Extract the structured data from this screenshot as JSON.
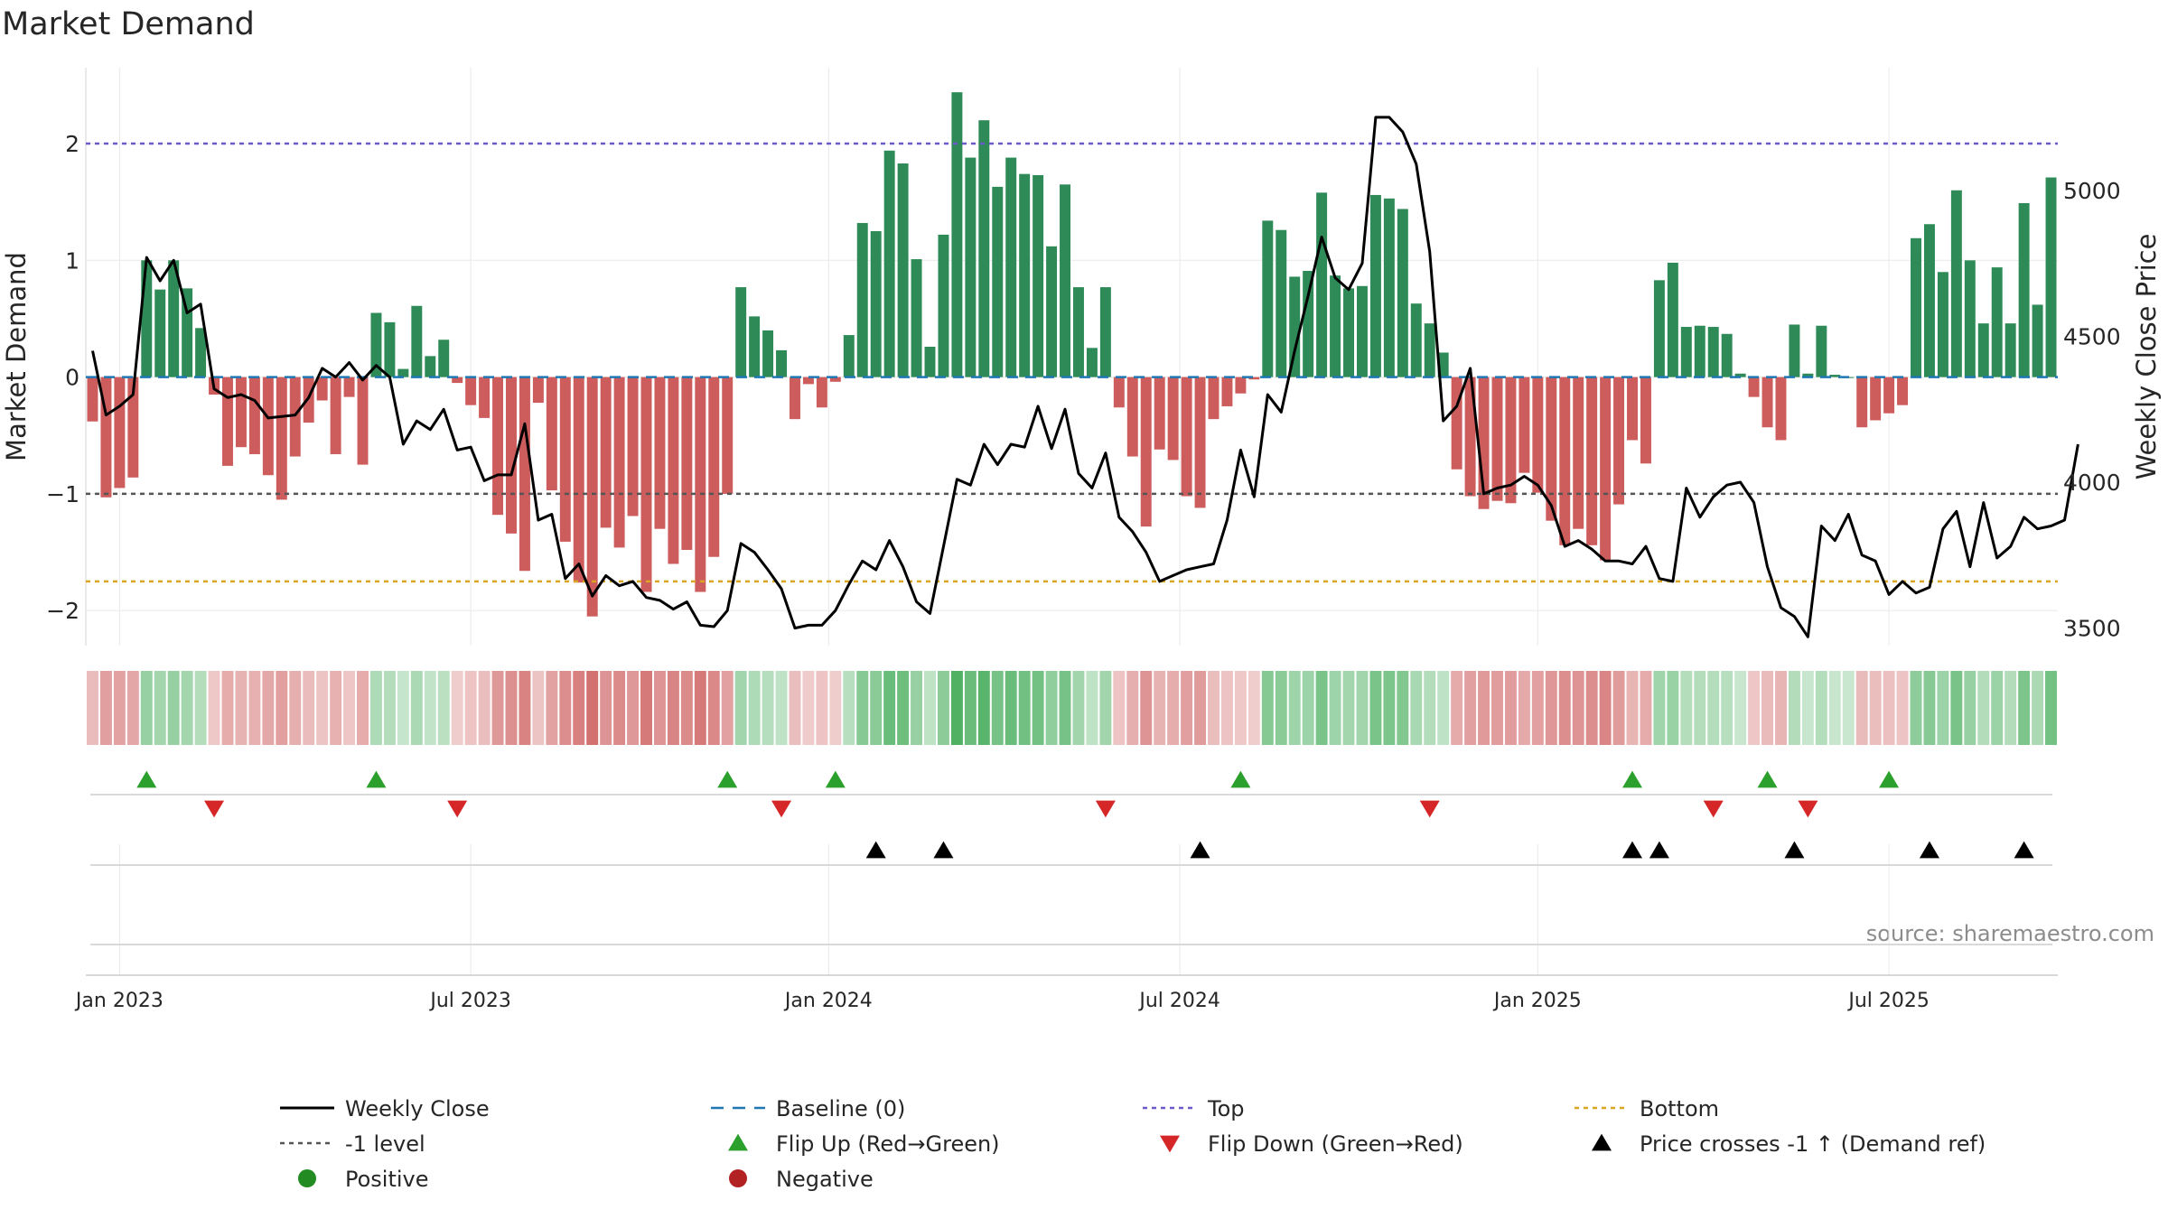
{
  "chart_data": {
    "type": "bar",
    "title": "Market Demand",
    "xlabel": "",
    "ylabel": "Market Demand",
    "y2label": "Weekly Close Price",
    "ylim": [
      -2.3,
      2.65
    ],
    "y2lim": [
      3440,
      5420
    ],
    "yticks": [
      {
        "value": 2,
        "label": "2"
      },
      {
        "value": 1,
        "label": "1"
      },
      {
        "value": 0,
        "label": "0"
      },
      {
        "value": -1,
        "label": "−1"
      },
      {
        "value": -2,
        "label": "−2"
      }
    ],
    "y2ticks": [
      {
        "value": 5000,
        "label": "5000"
      },
      {
        "value": 4500,
        "label": "4500"
      },
      {
        "value": 4000,
        "label": "4000"
      },
      {
        "value": 3500,
        "label": "3500"
      }
    ],
    "xticks": [
      {
        "week": 2,
        "label": "Jan 2023"
      },
      {
        "week": 28,
        "label": "Jul 2023"
      },
      {
        "week": 54.5,
        "label": "Jan 2024"
      },
      {
        "week": 80.5,
        "label": "Jul 2024"
      },
      {
        "week": 107,
        "label": "Jan 2025"
      },
      {
        "week": 133,
        "label": "Jul 2025"
      }
    ],
    "reference_lines": {
      "top": 2,
      "bottom": -1.75,
      "minus_one": -1,
      "baseline": 0
    },
    "series": [
      {
        "name": "Market Demand",
        "values": [
          -0.38,
          -1.03,
          -0.95,
          -0.86,
          1.0,
          0.75,
          1.0,
          0.76,
          0.42,
          -0.15,
          -0.76,
          -0.6,
          -0.66,
          -0.84,
          -1.05,
          -0.68,
          -0.39,
          -0.2,
          -0.66,
          -0.17,
          -0.75,
          0.55,
          0.47,
          0.07,
          0.61,
          0.18,
          0.32,
          -0.05,
          -0.24,
          -0.35,
          -1.18,
          -1.34,
          -1.66,
          -0.22,
          -0.97,
          -1.41,
          -1.76,
          -2.05,
          -1.29,
          -1.46,
          -1.19,
          -1.84,
          -1.3,
          -1.6,
          -1.48,
          -1.84,
          -1.54,
          -1.0,
          0.77,
          0.52,
          0.4,
          0.23,
          -0.36,
          -0.06,
          -0.26,
          -0.04,
          0.36,
          1.32,
          1.25,
          1.94,
          1.83,
          1.01,
          0.26,
          1.22,
          2.44,
          1.88,
          2.2,
          1.63,
          1.88,
          1.74,
          1.73,
          1.12,
          1.65,
          0.77,
          0.25,
          0.77,
          -0.26,
          -0.68,
          -1.28,
          -0.62,
          -0.71,
          -1.02,
          -1.12,
          -0.36,
          -0.25,
          -0.14,
          -0.02,
          1.34,
          1.26,
          0.86,
          0.91,
          1.58,
          0.87,
          0.76,
          0.78,
          1.56,
          1.53,
          1.44,
          0.63,
          0.46,
          0.21,
          -0.79,
          -1.02,
          -1.13,
          -1.06,
          -1.08,
          -0.82,
          -0.99,
          -1.23,
          -1.44,
          -1.3,
          -1.44,
          -1.57,
          -1.09,
          -0.54,
          -0.74,
          0.83,
          0.98,
          0.43,
          0.44,
          0.43,
          0.37,
          0.03,
          -0.17,
          -0.43,
          -0.54,
          0.45,
          0.03,
          0.44,
          0.02,
          0.0,
          -0.43,
          -0.37,
          -0.31,
          -0.24,
          1.19,
          1.31,
          0.9,
          1.6,
          1.0,
          0.46,
          0.94,
          0.46,
          1.49,
          0.62,
          1.71
        ]
      },
      {
        "name": "Weekly Close",
        "values": [
          4450,
          4230,
          4260,
          4300,
          4770,
          4690,
          4760,
          4580,
          4610,
          4320,
          4290,
          4300,
          4280,
          4220,
          4225,
          4230,
          4290,
          4390,
          4360,
          4410,
          4350,
          4400,
          4360,
          4130,
          4210,
          4180,
          4250,
          4110,
          4120,
          4005,
          4025,
          4025,
          4200,
          3870,
          3890,
          3670,
          3720,
          3610,
          3680,
          3645,
          3660,
          3605,
          3595,
          3565,
          3590,
          3510,
          3505,
          3560,
          3790,
          3760,
          3700,
          3635,
          3500,
          3510,
          3510,
          3560,
          3650,
          3730,
          3700,
          3800,
          3710,
          3590,
          3550,
          3780,
          4010,
          3990,
          4130,
          4060,
          4130,
          4120,
          4260,
          4115,
          4250,
          4030,
          3980,
          4100,
          3880,
          3830,
          3760,
          3660,
          3680,
          3700,
          3710,
          3720,
          3870,
          4110,
          3950,
          4300,
          4240,
          4450,
          4640,
          4840,
          4700,
          4660,
          4750,
          5250,
          5250,
          5200,
          5090,
          4790,
          4210,
          4260,
          4390,
          3960,
          3980,
          3990,
          4020,
          3990,
          3920,
          3780,
          3800,
          3770,
          3730,
          3730,
          3720,
          3780,
          3670,
          3660,
          3980,
          3880,
          3950,
          3990,
          4000,
          3930,
          3710,
          3570,
          3540,
          3470,
          3850,
          3800,
          3890,
          3750,
          3730,
          3615,
          3660,
          3620,
          3640,
          3840,
          3900,
          3710,
          3930,
          3740,
          3780,
          3880,
          3840,
          3850,
          3870,
          4130
        ]
      }
    ],
    "markers": {
      "flip_up_weeks": [
        4,
        21,
        47,
        55,
        85,
        114,
        124,
        133
      ],
      "flip_down_weeks": [
        9,
        27,
        51,
        75,
        99,
        120,
        127
      ],
      "price_cross_weeks": [
        58,
        63,
        82,
        114,
        116,
        126,
        136,
        143
      ]
    },
    "legend": [
      {
        "key": "weekly-close",
        "label": "Weekly Close"
      },
      {
        "key": "baseline",
        "label": "Baseline (0)"
      },
      {
        "key": "top",
        "label": "Top"
      },
      {
        "key": "bottom",
        "label": "Bottom"
      },
      {
        "key": "minus-one",
        "label": "-1 level"
      },
      {
        "key": "flip-up",
        "label": "Flip Up (Red→Green)"
      },
      {
        "key": "flip-down",
        "label": "Flip Down (Green→Red)"
      },
      {
        "key": "price-cross",
        "label": "Price crosses -1 ↑ (Demand ref)"
      },
      {
        "key": "positive",
        "label": "Positive"
      },
      {
        "key": "negative",
        "label": "Negative"
      }
    ],
    "source": "source: sharemaestro.com",
    "colors": {
      "positive_bar": "#2e8b57",
      "negative_bar": "#cd5c5c",
      "price_line": "#000000",
      "baseline": "#1f77b4",
      "top": "#6a5acd",
      "bottom": "#daa520",
      "minus_one": "#555555",
      "flip_up": "#2ca02c",
      "flip_down": "#d62728",
      "price_cross": "#000000",
      "positive_dot": "#228b22",
      "negative_dot": "#b22222"
    }
  }
}
